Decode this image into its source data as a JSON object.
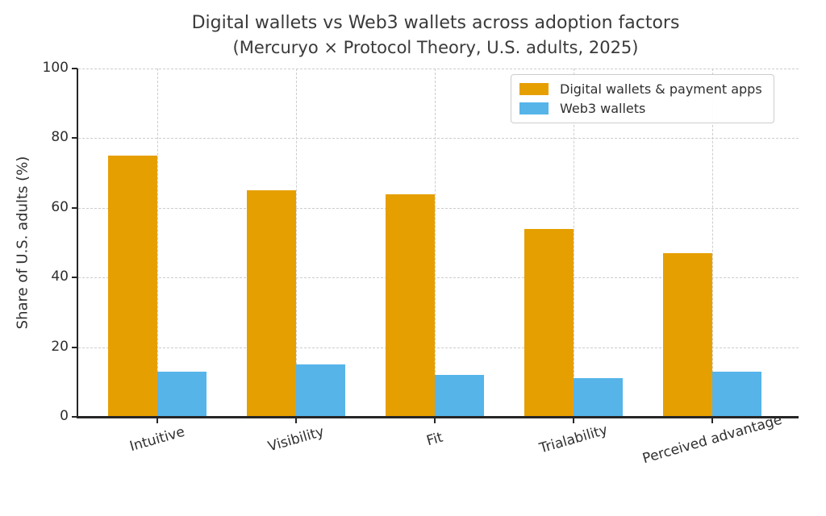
{
  "chart_data": {
    "type": "bar",
    "title": "Digital wallets vs Web3 wallets across adoption factors",
    "subtitle": "(Mercuryo × Protocol Theory, U.S. adults, 2025)",
    "xlabel": "",
    "ylabel": "Share of U.S. adults (%)",
    "categories": [
      "Intuitive",
      "Visibility",
      "Fit",
      "Trialability",
      "Perceived advantage"
    ],
    "series": [
      {
        "name": "Digital wallets & payment apps",
        "color": "#E69F00",
        "values": [
          75,
          65,
          64,
          54,
          47
        ]
      },
      {
        "name": "Web3 wallets",
        "color": "#56B4E9",
        "values": [
          13,
          15,
          12,
          11,
          13
        ]
      }
    ],
    "ylim": [
      0,
      100
    ],
    "yticks": [
      0,
      20,
      40,
      60,
      80,
      100
    ],
    "grid": "both-dashed",
    "legend_position": "upper right",
    "background": "#ffffff",
    "text_color": "#3a3a3a"
  }
}
